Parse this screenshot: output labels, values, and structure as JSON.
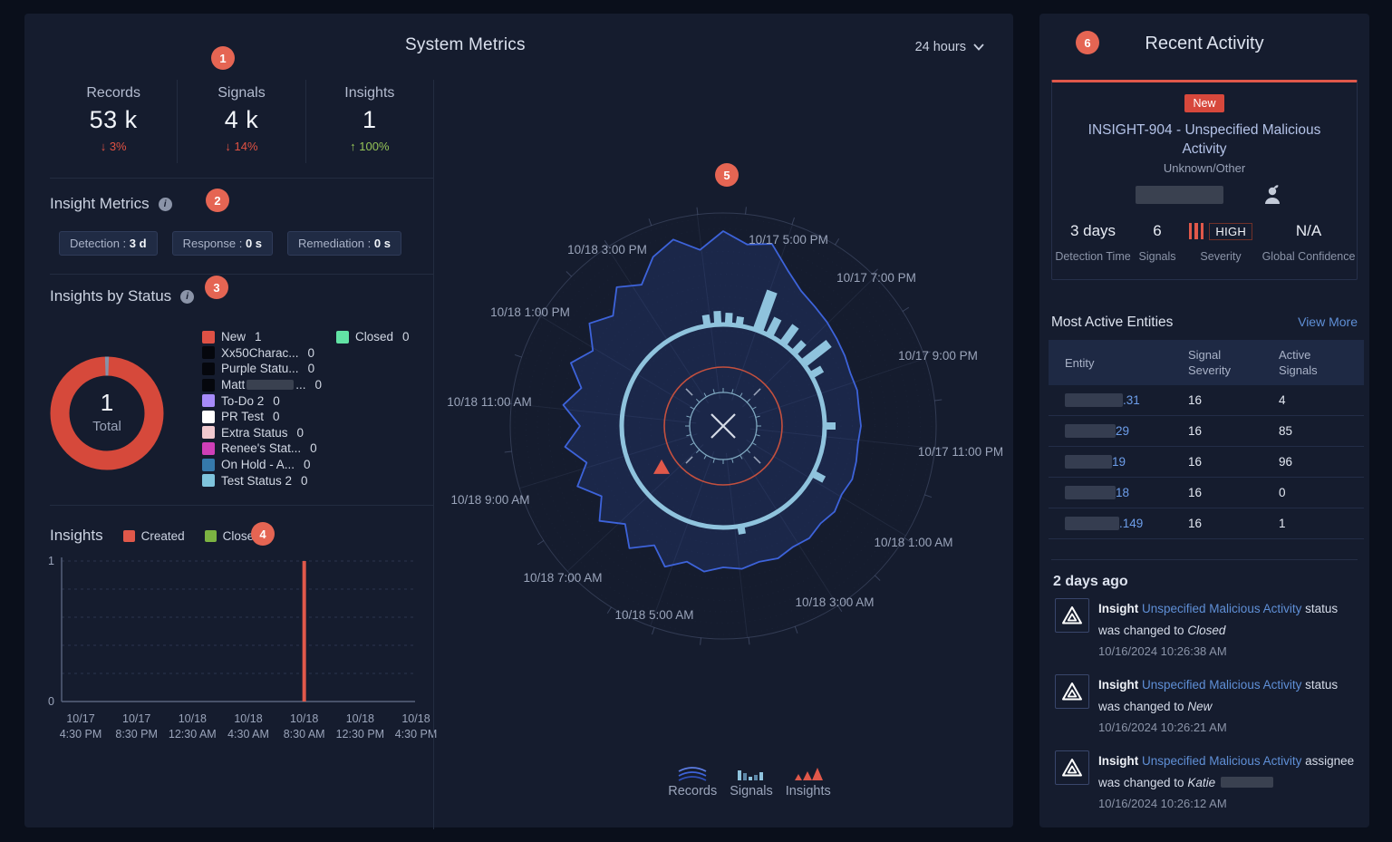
{
  "system_metrics": {
    "title": "System Metrics",
    "time_range": "24 hours",
    "markers": [
      "1",
      "2",
      "3",
      "4",
      "5",
      "6"
    ],
    "kpis": [
      {
        "label": "Records",
        "value": "53 k",
        "arrow": "↓",
        "delta": "3%",
        "direction": "down"
      },
      {
        "label": "Signals",
        "value": "4 k",
        "arrow": "↓",
        "delta": "14%",
        "direction": "down"
      },
      {
        "label": "Insights",
        "value": "1",
        "arrow": "↑",
        "delta": "100%",
        "direction": "up"
      }
    ],
    "insight_metrics": {
      "title": "Insight Metrics",
      "chips": [
        {
          "label": "Detection :",
          "value": "3 d"
        },
        {
          "label": "Response :",
          "value": "0 s"
        },
        {
          "label": "Remediation :",
          "value": "0 s"
        }
      ]
    },
    "insights_by_status": {
      "title": "Insights by Status",
      "total_value": "1",
      "total_label": "Total",
      "statuses": [
        {
          "name": "New",
          "count": "1",
          "color": "#de5145"
        },
        {
          "name": "Xx50Charac...",
          "count": "0",
          "color": "#05070d"
        },
        {
          "name": "Purple Statu...",
          "count": "0",
          "color": "#05070d"
        },
        {
          "name": "Matt",
          "count": "0",
          "color": "#05070d",
          "redacted": true
        },
        {
          "name": "To-Do 2",
          "count": "0",
          "color": "#a78bfa"
        },
        {
          "name": "PR Test",
          "count": "0",
          "color": "#ffffff"
        },
        {
          "name": "Extra Status",
          "count": "0",
          "color": "#f0c9cf"
        },
        {
          "name": "Renee's Stat...",
          "count": "0",
          "color": "#cf3fb8"
        },
        {
          "name": "On Hold - A...",
          "count": "0",
          "color": "#3579ab"
        },
        {
          "name": "Test Status 2",
          "count": "0",
          "color": "#7fc4dd"
        }
      ],
      "statuses_col2": [
        {
          "name": "Closed",
          "count": "0",
          "color": "#62e3a5"
        }
      ]
    },
    "insights_timeline": {
      "title": "Insights",
      "legend": [
        {
          "name": "Created",
          "color": "#e0584a"
        },
        {
          "name": "Closed",
          "color": "#7cb342"
        }
      ]
    },
    "radar_legend": [
      {
        "name": "Records",
        "color": "#3d63da"
      },
      {
        "name": "Signals",
        "color": "#8fc3dd"
      },
      {
        "name": "Insights",
        "color": "#e0584a"
      }
    ]
  },
  "recent_activity": {
    "title": "Recent Activity",
    "card": {
      "status_badge": "New",
      "title": "INSIGHT-904 - Unspecified Malicious Activity",
      "subtitle": "Unknown/Other",
      "stats": [
        {
          "value": "3 days",
          "label": "Detection Time"
        },
        {
          "value": "6",
          "label": "Signals"
        },
        {
          "value": "HIGH",
          "label": "Severity"
        },
        {
          "value": "N/A",
          "label": "Global Confidence"
        }
      ]
    },
    "entities": {
      "title": "Most Active Entities",
      "link": "View More",
      "columns": [
        "Entity",
        "Signal Severity",
        "Active Signals"
      ],
      "rows": [
        {
          "entity_suffix": ".31",
          "severity": "16",
          "active": "4"
        },
        {
          "entity_suffix": "29",
          "severity": "16",
          "active": "85"
        },
        {
          "entity_suffix": "19",
          "severity": "16",
          "active": "96"
        },
        {
          "entity_suffix": "18",
          "severity": "16",
          "active": "0"
        },
        {
          "entity_suffix": ".149",
          "severity": "16",
          "active": "1"
        }
      ]
    },
    "feed": {
      "group": "2 days ago",
      "items": [
        {
          "prefix": "Insight",
          "link": "Unspecified Malicious Activity",
          "middle": "status was changed to",
          "emphasis": "Closed",
          "redacted": false,
          "timestamp": "10/16/2024 10:26:38 AM"
        },
        {
          "prefix": "Insight",
          "link": "Unspecified Malicious Activity",
          "middle": "status was changed to",
          "emphasis": "New",
          "redacted": false,
          "timestamp": "10/16/2024 10:26:21 AM"
        },
        {
          "prefix": "Insight",
          "link": "Unspecified Malicious Activity",
          "middle": "assignee was changed to",
          "emphasis": "Katie",
          "redacted": true,
          "timestamp": "10/16/2024 10:26:12 AM"
        }
      ]
    }
  },
  "chart_data": [
    {
      "type": "pie",
      "title": "Insights by Status",
      "labels": [
        "New",
        "Xx50Charac...",
        "Purple Statu...",
        "Matt",
        "To-Do 2",
        "PR Test",
        "Extra Status",
        "Renee's Stat...",
        "On Hold - A...",
        "Test Status 2",
        "Closed"
      ],
      "values": [
        1,
        0,
        0,
        0,
        0,
        0,
        0,
        0,
        0,
        0,
        0
      ],
      "colors": [
        "#de5145",
        "#05070d",
        "#05070d",
        "#05070d",
        "#a78bfa",
        "#ffffff",
        "#f0c9cf",
        "#cf3fb8",
        "#3579ab",
        "#7fc4dd",
        "#62e3a5"
      ],
      "center_value": "1",
      "center_label": "Total",
      "ring_color": "#d6493b"
    },
    {
      "type": "bar",
      "title": "Insights",
      "x_labels": [
        [
          "10/17",
          "4:30 PM"
        ],
        [
          "10/17",
          "8:30 PM"
        ],
        [
          "10/18",
          "12:30 AM"
        ],
        [
          "10/18",
          "4:30 AM"
        ],
        [
          "10/18",
          "8:30 AM"
        ],
        [
          "10/18",
          "12:30 PM"
        ],
        [
          "10/18",
          "4:30 PM"
        ]
      ],
      "series": [
        {
          "name": "Created",
          "color": "#e0584a",
          "values": [
            0,
            0,
            0,
            0,
            1,
            0,
            0
          ]
        },
        {
          "name": "Closed",
          "color": "#7cb342",
          "values": [
            0,
            0,
            0,
            0,
            0,
            0,
            0
          ]
        }
      ],
      "ylim": [
        0,
        1
      ],
      "yticks": [
        "0",
        "1"
      ],
      "grid": "dashed"
    },
    {
      "type": "radar-clock",
      "title": "System Metrics 24 hours",
      "axis_labels": [
        "10/17 5:00 PM",
        "10/17 7:00 PM",
        "10/17 9:00 PM",
        "10/17 11:00 PM",
        "10/18 1:00 AM",
        "10/18 3:00 AM",
        "10/18 5:00 AM",
        "10/18 7:00 AM",
        "10/18 9:00 AM",
        "10/18 11:00 AM",
        "10/18 1:00 PM",
        "10/18 3:00 PM"
      ],
      "series": [
        "Records",
        "Signals",
        "Insights"
      ],
      "colors": {
        "records": "#3d63da",
        "signals": "#8fc3dd",
        "insights": "#e0584a",
        "threshold_ring": "#c4503e"
      },
      "records_r": [
        196,
        215,
        202,
        208,
        186,
        172,
        166,
        162,
        158,
        155,
        152,
        153,
        151,
        152,
        150,
        152,
        154,
        151,
        155,
        152,
        156,
        154,
        158,
        155,
        159,
        156,
        162,
        155,
        168,
        152,
        170,
        153,
        172,
        155,
        174,
        156,
        176,
        158,
        178,
        162,
        182,
        166,
        186,
        172,
        193,
        180,
        202,
        213
      ],
      "signals_base_r": 112,
      "signals_bars": [
        {
          "a": -9,
          "r": 124,
          "w": 8
        },
        {
          "a": -3,
          "r": 127,
          "w": 8
        },
        {
          "a": 3,
          "r": 125,
          "w": 8
        },
        {
          "a": 9,
          "r": 122,
          "w": 8
        },
        {
          "a": 20,
          "r": 158,
          "w": 12
        },
        {
          "a": 27,
          "r": 133,
          "w": 9
        },
        {
          "a": 36,
          "r": 136,
          "w": 9
        },
        {
          "a": 44,
          "r": 128,
          "w": 8
        },
        {
          "a": 52,
          "r": 148,
          "w": 10
        },
        {
          "a": 60,
          "r": 126,
          "w": 8
        },
        {
          "a": 90,
          "r": 124,
          "w": 8
        },
        {
          "a": 118,
          "r": 126,
          "w": 8
        },
        {
          "a": 170,
          "r": 121,
          "w": 8
        }
      ],
      "insight_marker": {
        "a": 236,
        "r": 82
      }
    }
  ]
}
